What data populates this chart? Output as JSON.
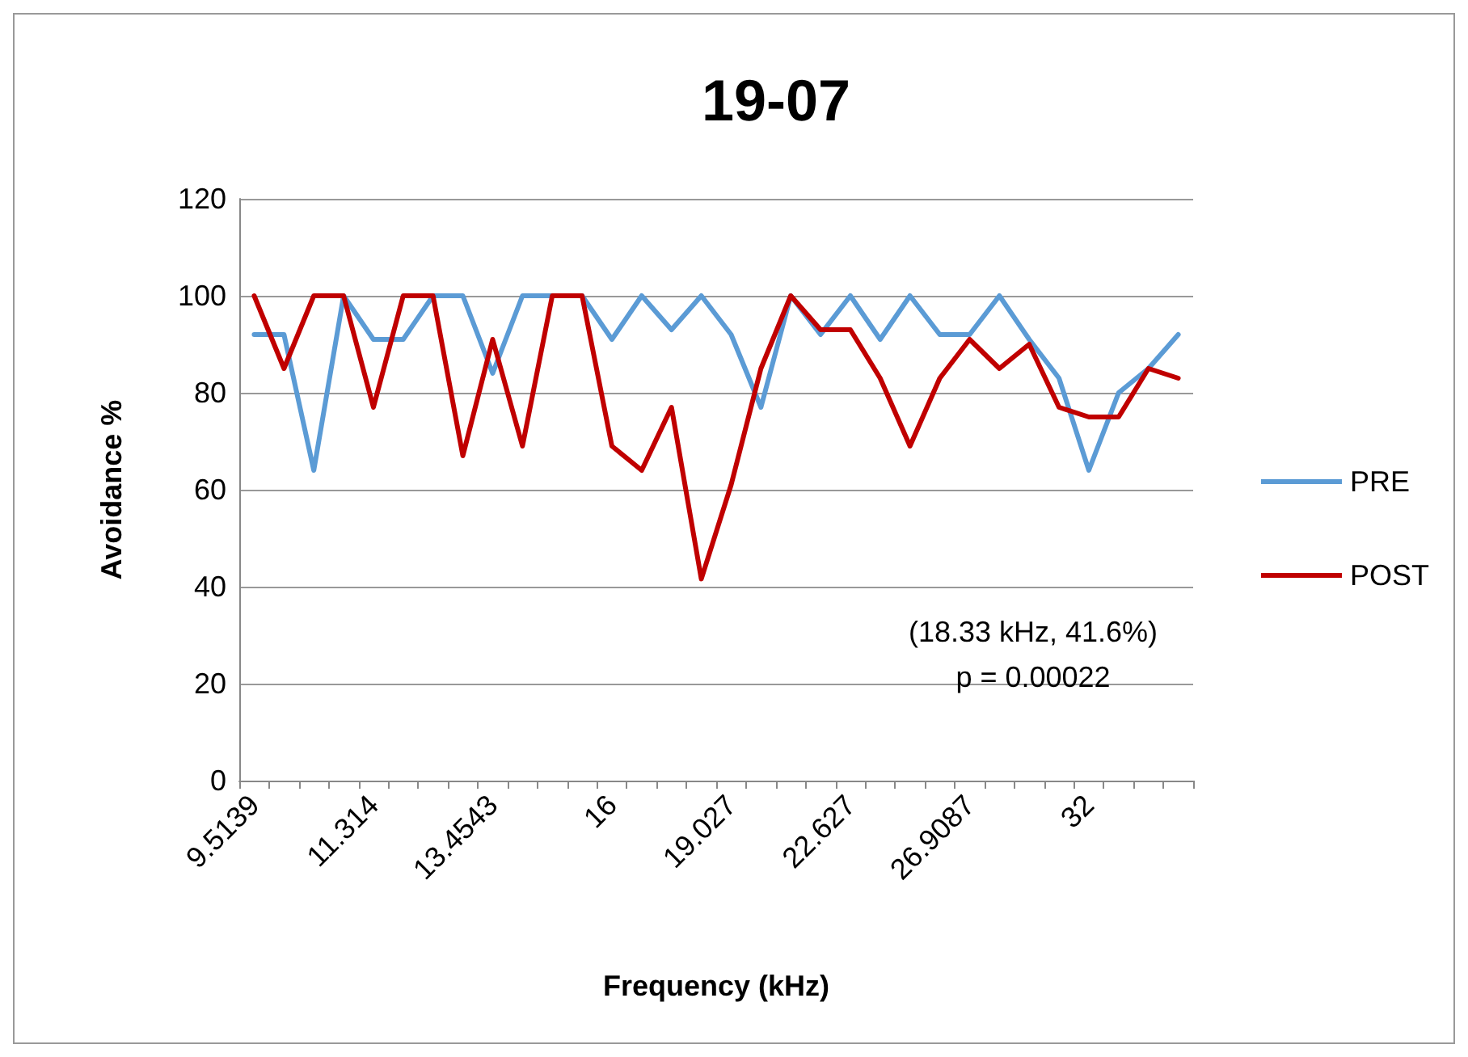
{
  "chart_data": {
    "type": "line",
    "title": "19-07",
    "xlabel": "Frequency (kHz)",
    "ylabel": "Avoidance %",
    "categories": [
      "9.5139",
      null,
      null,
      null,
      "11.314",
      null,
      null,
      null,
      "13.4543",
      null,
      null,
      null,
      "16",
      null,
      null,
      null,
      "19.027",
      null,
      null,
      null,
      "22.627",
      null,
      null,
      null,
      "26.9087",
      null,
      null,
      null,
      "32",
      null,
      null,
      null
    ],
    "series": [
      {
        "name": "PRE",
        "color": "#5b9bd5",
        "values": [
          92,
          92,
          64,
          100,
          91,
          91,
          100,
          100,
          84,
          100,
          100,
          100,
          91,
          100,
          93,
          100,
          92,
          77,
          100,
          92,
          100,
          91,
          100,
          92,
          92,
          100,
          91,
          83,
          64,
          80,
          85,
          92
        ]
      },
      {
        "name": "POST",
        "color": "#c00000",
        "values": [
          100,
          85,
          100,
          100,
          77,
          100,
          100,
          67,
          91,
          69,
          100,
          100,
          69,
          64,
          77,
          41.6,
          61,
          85,
          100,
          93,
          93,
          83,
          69,
          83,
          91,
          85,
          90,
          77,
          75,
          75,
          85,
          83
        ]
      }
    ],
    "ylim": [
      0,
      120
    ],
    "yticks": [
      0,
      20,
      40,
      60,
      80,
      100,
      120
    ],
    "grid": "y",
    "legend": "right",
    "marker": "none",
    "line_style": "solid",
    "annotations": [
      "(18.33 kHz, 41.6%)\np = 0.00022"
    ]
  }
}
